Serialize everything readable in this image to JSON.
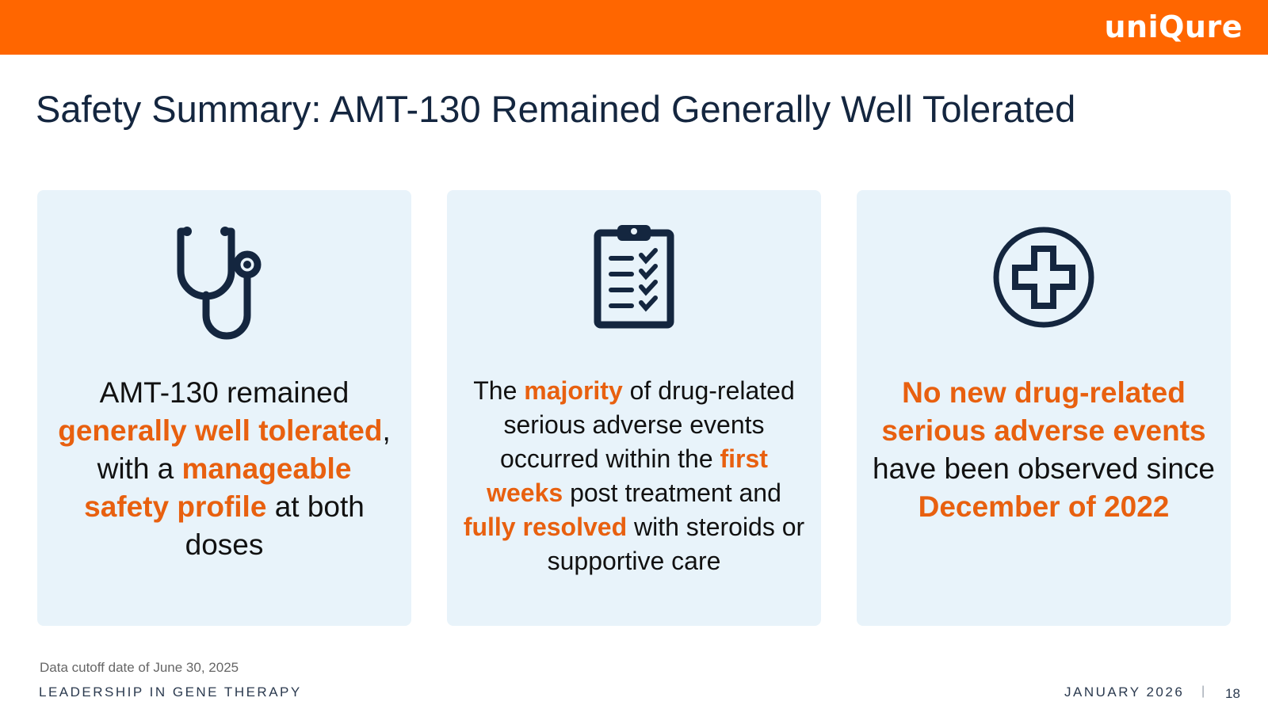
{
  "header": {
    "brand": "uniQure",
    "brand_color": "#FF6600"
  },
  "title": "Safety Summary: AMT-130 Remained Generally Well Tolerated",
  "cards": [
    {
      "icon": "stethoscope-icon",
      "segments": [
        {
          "text": "AMT-130 remained ",
          "highlight": false
        },
        {
          "text": "generally well tolerated",
          "highlight": true
        },
        {
          "text": ", with a ",
          "highlight": false
        },
        {
          "text": "manageable safety profile",
          "highlight": true
        },
        {
          "text": " at both doses",
          "highlight": false
        }
      ]
    },
    {
      "icon": "clipboard-checklist-icon",
      "segments": [
        {
          "text": "The ",
          "highlight": false
        },
        {
          "text": "majority",
          "highlight": true
        },
        {
          "text": " of drug-related serious adverse events occurred within the ",
          "highlight": false
        },
        {
          "text": "first weeks",
          "highlight": true
        },
        {
          "text": " post treatment and ",
          "highlight": false
        },
        {
          "text": "fully resolved",
          "highlight": true
        },
        {
          "text": " with steroids or supportive care",
          "highlight": false
        }
      ]
    },
    {
      "icon": "medical-cross-icon",
      "segments": [
        {
          "text": "No new drug-related serious adverse events",
          "highlight": true
        },
        {
          "text": " have been observed since ",
          "highlight": false
        },
        {
          "text": "December of 2022",
          "highlight": true
        }
      ]
    }
  ],
  "footnote": "Data cutoff date of June 30, 2025",
  "footer": {
    "tagline": "LEADERSHIP IN GENE THERAPY",
    "date": "JANUARY 2026",
    "separator": "|",
    "page": "18"
  },
  "colors": {
    "accent": "#E8600F",
    "title": "#14263F",
    "card_bg": "#E8F3FA",
    "icon": "#14263F"
  }
}
